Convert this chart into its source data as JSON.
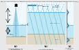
{
  "bg_color": "#e8e8e8",
  "water_color": "#c0e8f4",
  "air_color": "#f0f8fc",
  "seabed_color": "#e0d8c0",
  "beam_color": "#60c0e8",
  "diag_color": "#60c0e8",
  "title_color": "#000000",
  "panel_border": "#aaaaaa",
  "surface_line_color": "#60b0d0",
  "seabed_line_color": "#b0a080",
  "signal_color": "#40a0c0",
  "white": "#ffffff"
}
